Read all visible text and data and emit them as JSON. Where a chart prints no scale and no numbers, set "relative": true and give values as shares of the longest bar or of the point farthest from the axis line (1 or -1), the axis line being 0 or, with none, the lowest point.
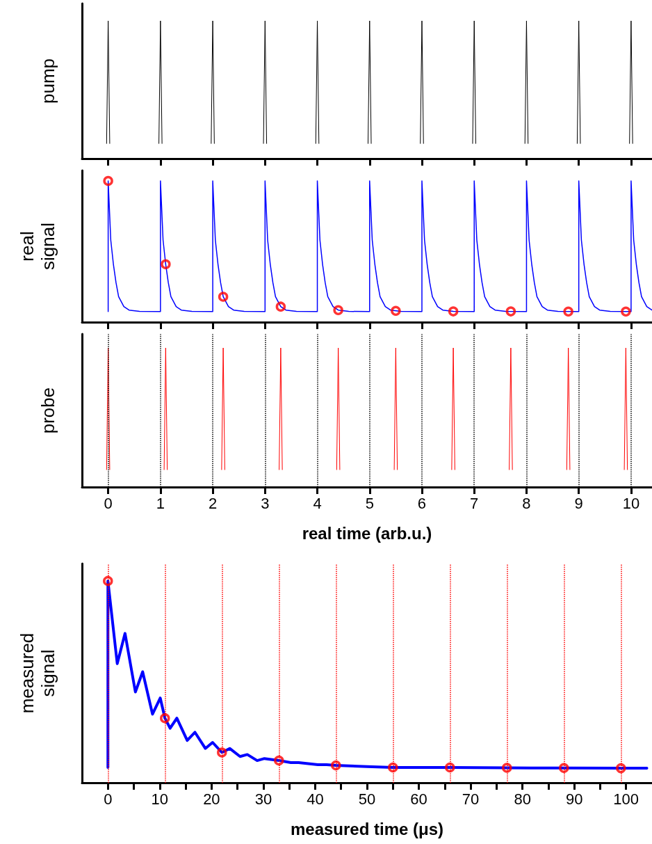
{
  "chart_data": [
    {
      "type": "line",
      "ylabel": "pump",
      "relative": true,
      "xlim": [
        -0.5,
        10.4
      ],
      "xticks": [
        0,
        1,
        2,
        3,
        4,
        5,
        6,
        7,
        8,
        9,
        10
      ],
      "tick_labels": false,
      "marker": "none",
      "series": [
        {
          "color": "#000000",
          "x": [
            -0.03,
            0,
            0.03,
            0.5,
            0.97,
            1,
            1.03,
            1.5,
            1.97,
            2,
            2.03,
            2.5,
            2.97,
            3,
            3.03,
            3.5,
            3.97,
            4,
            4.03,
            4.5,
            4.97,
            5,
            5.03,
            5.5,
            5.97,
            6,
            6.03,
            6.5,
            6.97,
            7,
            7.03,
            7.5,
            7.97,
            8,
            8.03,
            8.5,
            8.97,
            9,
            9.03,
            9.5,
            9.97,
            10,
            10.03
          ],
          "values": [
            0.11,
            1,
            0.11,
            null,
            0.11,
            1,
            0.11,
            null,
            0.11,
            1,
            0.11,
            null,
            0.11,
            1,
            0.11,
            null,
            0.11,
            1,
            0.11,
            null,
            0.11,
            1,
            0.11,
            null,
            0.11,
            1,
            0.11,
            null,
            0.11,
            1,
            0.11,
            null,
            0.11,
            1,
            0.11,
            null,
            0.11,
            1,
            0.11,
            null,
            0.11,
            1,
            0.11
          ]
        }
      ]
    },
    {
      "type": "line",
      "ylabel": "real signal",
      "relative": true,
      "xlim": [
        -0.5,
        10.4
      ],
      "xticks": [
        0,
        1,
        2,
        3,
        4,
        5,
        6,
        7,
        8,
        9,
        10
      ],
      "tick_labels": false,
      "series": [
        {
          "color": "#0000ff",
          "marker": "none",
          "x": [
            0,
            0,
            0.05,
            0.1,
            0.15,
            0.2,
            0.3,
            0.4,
            0.6,
            1,
            1,
            1.05,
            1.1,
            1.15,
            1.2,
            1.3,
            1.4,
            1.6,
            2,
            2,
            2.05,
            2.1,
            2.15,
            2.2,
            2.3,
            2.4,
            2.6,
            3,
            3,
            3.05,
            3.1,
            3.15,
            3.2,
            3.3,
            3.4,
            3.6,
            4,
            4,
            4.05,
            4.1,
            4.15,
            4.2,
            4.3,
            4.4,
            4.6,
            5,
            5,
            5.05,
            5.1,
            5.15,
            5.2,
            5.3,
            5.4,
            5.6,
            6,
            6,
            6.05,
            6.1,
            6.15,
            6.2,
            6.3,
            6.4,
            6.6,
            7,
            7,
            7.05,
            7.1,
            7.15,
            7.2,
            7.3,
            7.4,
            7.6,
            8,
            8,
            8.05,
            8.1,
            8.15,
            8.2,
            8.3,
            8.4,
            8.6,
            9,
            9,
            9.05,
            9.1,
            9.15,
            9.2,
            9.3,
            9.4,
            9.6,
            10,
            10,
            10.05,
            10.1,
            10.15,
            10.2,
            10.3,
            10.4
          ],
          "values": [
            0.075,
            1,
            0.58,
            0.41,
            0.28,
            0.18,
            0.11,
            0.085,
            0.076,
            0.075,
            1,
            0.58,
            0.41,
            0.28,
            0.18,
            0.11,
            0.085,
            0.076,
            0.075,
            1,
            0.58,
            0.41,
            0.28,
            0.18,
            0.11,
            0.085,
            0.076,
            0.075,
            1,
            0.58,
            0.41,
            0.28,
            0.18,
            0.11,
            0.085,
            0.076,
            0.075,
            1,
            0.58,
            0.41,
            0.28,
            0.18,
            0.11,
            0.085,
            0.076,
            0.075,
            1,
            0.58,
            0.41,
            0.28,
            0.18,
            0.11,
            0.085,
            0.076,
            0.075,
            1,
            0.58,
            0.41,
            0.28,
            0.18,
            0.11,
            0.085,
            0.076,
            0.075,
            1,
            0.58,
            0.41,
            0.28,
            0.18,
            0.11,
            0.085,
            0.076,
            0.075,
            1,
            0.58,
            0.41,
            0.28,
            0.18,
            0.11,
            0.085,
            0.076,
            0.075,
            1,
            0.58,
            0.41,
            0.28,
            0.18,
            0.11,
            0.085,
            0.076,
            0.075,
            1,
            0.58,
            0.41,
            0.28,
            0.18,
            0.11,
            0.085
          ]
        },
        {
          "type": "scatter",
          "color": "#ff0000",
          "marker": "circle",
          "x": [
            0,
            1.1,
            2.2,
            3.3,
            4.4,
            5.5,
            6.6,
            7.7,
            8.8,
            9.9
          ],
          "values": [
            1,
            0.41,
            0.18,
            0.11,
            0.085,
            0.08,
            0.076,
            0.076,
            0.075,
            0.075
          ]
        }
      ]
    },
    {
      "type": "line",
      "ylabel": "probe",
      "xlabel": "real time (arb.u.)",
      "relative": true,
      "xlim": [
        -0.5,
        10.4
      ],
      "xticks": [
        0,
        1,
        2,
        3,
        4,
        5,
        6,
        7,
        8,
        9,
        10
      ],
      "tick_labels": "x",
      "marker": "none",
      "ref_lines": [
        {
          "axis": "x",
          "value": 0,
          "color": "#000000",
          "line_style": "dotted"
        },
        {
          "axis": "x",
          "value": 1,
          "color": "#000000",
          "line_style": "dotted"
        },
        {
          "axis": "x",
          "value": 2,
          "color": "#000000",
          "line_style": "dotted"
        },
        {
          "axis": "x",
          "value": 3,
          "color": "#000000",
          "line_style": "dotted"
        },
        {
          "axis": "x",
          "value": 4,
          "color": "#000000",
          "line_style": "dotted"
        },
        {
          "axis": "x",
          "value": 5,
          "color": "#000000",
          "line_style": "dotted"
        },
        {
          "axis": "x",
          "value": 6,
          "color": "#000000",
          "line_style": "dotted"
        },
        {
          "axis": "x",
          "value": 7,
          "color": "#000000",
          "line_style": "dotted"
        },
        {
          "axis": "x",
          "value": 8,
          "color": "#000000",
          "line_style": "dotted"
        },
        {
          "axis": "x",
          "value": 9,
          "color": "#000000",
          "line_style": "dotted"
        },
        {
          "axis": "x",
          "value": 10,
          "color": "#000000",
          "line_style": "dotted"
        }
      ],
      "series": [
        {
          "color": "#ff0000",
          "x": [
            -0.03,
            0,
            0.03,
            0.5,
            1.07,
            1.1,
            1.13,
            1.6,
            2.17,
            2.2,
            2.23,
            2.7,
            3.27,
            3.3,
            3.33,
            3.8,
            4.37,
            4.4,
            4.43,
            4.9,
            5.47,
            5.5,
            5.53,
            6,
            6.57,
            6.6,
            6.63,
            7.1,
            7.67,
            7.7,
            7.73,
            8.2,
            8.77,
            8.8,
            8.83,
            9.3,
            9.87,
            9.9,
            9.93
          ],
          "values": [
            0.125,
            1,
            0.125,
            null,
            0.125,
            1,
            0.125,
            null,
            0.125,
            1,
            0.125,
            null,
            0.125,
            1,
            0.125,
            null,
            0.125,
            1,
            0.125,
            null,
            0.125,
            1,
            0.125,
            null,
            0.125,
            1,
            0.125,
            null,
            0.125,
            1,
            0.125,
            null,
            0.125,
            1,
            0.125,
            null,
            0.125,
            1,
            0.125
          ]
        }
      ]
    },
    {
      "type": "line",
      "ylabel": "measured signal",
      "xlabel": "measured time (μs)",
      "relative": true,
      "xlim": [
        -5,
        105
      ],
      "xticks": [
        0,
        {
          "value": 5,
          "label": null
        },
        10,
        {
          "value": 15,
          "label": null
        },
        20,
        {
          "value": 25,
          "label": null
        },
        30,
        {
          "value": 35,
          "label": null
        },
        40,
        {
          "value": 45,
          "label": null
        },
        50,
        {
          "value": 55,
          "label": null
        },
        60,
        {
          "value": 65,
          "label": null
        },
        70,
        {
          "value": 75,
          "label": null
        },
        80,
        {
          "value": 85,
          "label": null
        },
        90,
        {
          "value": 95,
          "label": null
        },
        100
      ],
      "tick_labels": "x",
      "ref_lines": [
        {
          "axis": "x",
          "value": 0,
          "color": "#ff0000",
          "line_style": "dotted"
        },
        {
          "axis": "x",
          "value": 11,
          "color": "#ff0000",
          "line_style": "dotted"
        },
        {
          "axis": "x",
          "value": 22,
          "color": "#ff0000",
          "line_style": "dotted"
        },
        {
          "axis": "x",
          "value": 33,
          "color": "#ff0000",
          "line_style": "dotted"
        },
        {
          "axis": "x",
          "value": 44,
          "color": "#ff0000",
          "line_style": "dotted"
        },
        {
          "axis": "x",
          "value": 55,
          "color": "#ff0000",
          "line_style": "dotted"
        },
        {
          "axis": "x",
          "value": 66,
          "color": "#ff0000",
          "line_style": "dotted"
        },
        {
          "axis": "x",
          "value": 77,
          "color": "#ff0000",
          "line_style": "dotted"
        },
        {
          "axis": "x",
          "value": 88,
          "color": "#ff0000",
          "line_style": "dotted"
        },
        {
          "axis": "x",
          "value": 99,
          "color": "#ff0000",
          "line_style": "dotted"
        }
      ],
      "series": [
        {
          "color": "#0000ff",
          "marker": "none",
          "x": [
            0,
            0,
            1.8,
            3.3,
            5.3,
            6.7,
            8.6,
            10.1,
            11,
            12,
            13.3,
            15.3,
            16.8,
            18.8,
            20.2,
            22,
            23.5,
            25.5,
            26.9,
            28.8,
            30.2,
            33,
            35.3,
            36.8,
            40.5,
            42.2,
            44,
            50,
            55,
            66,
            77,
            88,
            99,
            104
          ],
          "values": [
            0.076,
            1,
            0.59,
            0.74,
            0.45,
            0.55,
            0.34,
            0.42,
            0.32,
            0.27,
            0.32,
            0.21,
            0.25,
            0.17,
            0.2,
            0.15,
            0.17,
            0.13,
            0.14,
            0.11,
            0.12,
            0.11,
            0.1,
            0.1,
            0.09,
            0.09,
            0.086,
            0.08,
            0.076,
            0.076,
            0.074,
            0.073,
            0.072,
            0.072
          ]
        },
        {
          "type": "scatter",
          "color": "#ff0000",
          "marker": "circle",
          "x": [
            0,
            11,
            22,
            33,
            44,
            55,
            66,
            77,
            88,
            99
          ],
          "values": [
            1,
            0.32,
            0.15,
            0.11,
            0.086,
            0.076,
            0.076,
            0.074,
            0.073,
            0.072
          ]
        }
      ]
    }
  ]
}
